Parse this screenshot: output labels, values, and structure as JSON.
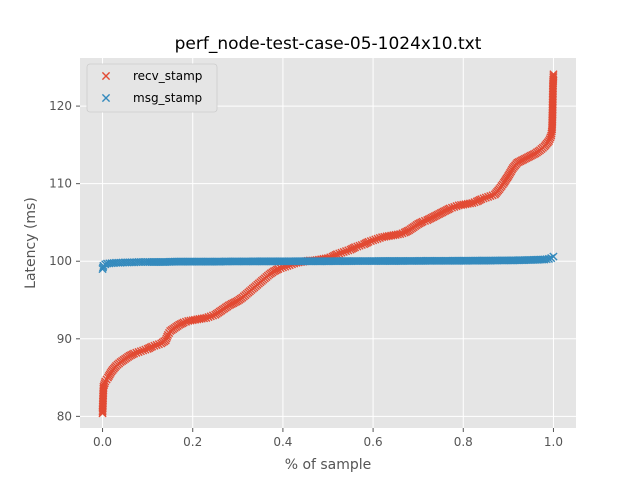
{
  "chart_data": {
    "type": "scatter",
    "title": "perf_node-test-case-05-1024x10.txt",
    "xlabel": "% of sample",
    "ylabel": "Latency (ms)",
    "xlim": [
      -0.05,
      1.05
    ],
    "ylim": [
      78.5,
      126.2
    ],
    "xticks": [
      0.0,
      0.2,
      0.4,
      0.6,
      0.8,
      1.0
    ],
    "xtick_labels": [
      "0.0",
      "0.2",
      "0.4",
      "0.6",
      "0.8",
      "1.0"
    ],
    "yticks": [
      80,
      90,
      100,
      110,
      120
    ],
    "ytick_labels": [
      "80",
      "90",
      "100",
      "110",
      "120"
    ],
    "grid": true,
    "legend_position": "top-left",
    "marker": "x",
    "series": [
      {
        "name": "recv_stamp",
        "color": "#E24A33",
        "points": [
          [
            0.0,
            80.4
          ],
          [
            0.002,
            83.8
          ],
          [
            0.006,
            84.5
          ],
          [
            0.012,
            85.0
          ],
          [
            0.02,
            85.8
          ],
          [
            0.03,
            86.5
          ],
          [
            0.04,
            87.0
          ],
          [
            0.05,
            87.4
          ],
          [
            0.06,
            87.8
          ],
          [
            0.07,
            88.1
          ],
          [
            0.08,
            88.3
          ],
          [
            0.09,
            88.5
          ],
          [
            0.1,
            88.7
          ],
          [
            0.11,
            89.0
          ],
          [
            0.12,
            89.2
          ],
          [
            0.13,
            89.4
          ],
          [
            0.14,
            89.8
          ],
          [
            0.145,
            90.5
          ],
          [
            0.15,
            91.0
          ],
          [
            0.16,
            91.4
          ],
          [
            0.17,
            91.8
          ],
          [
            0.18,
            92.1
          ],
          [
            0.19,
            92.3
          ],
          [
            0.2,
            92.4
          ],
          [
            0.21,
            92.5
          ],
          [
            0.22,
            92.6
          ],
          [
            0.23,
            92.7
          ],
          [
            0.24,
            92.9
          ],
          [
            0.25,
            93.1
          ],
          [
            0.26,
            93.5
          ],
          [
            0.27,
            93.9
          ],
          [
            0.28,
            94.3
          ],
          [
            0.29,
            94.6
          ],
          [
            0.3,
            94.9
          ],
          [
            0.31,
            95.3
          ],
          [
            0.32,
            95.8
          ],
          [
            0.33,
            96.3
          ],
          [
            0.34,
            96.8
          ],
          [
            0.35,
            97.3
          ],
          [
            0.36,
            97.8
          ],
          [
            0.37,
            98.3
          ],
          [
            0.38,
            98.7
          ],
          [
            0.39,
            99.0
          ],
          [
            0.4,
            99.2
          ],
          [
            0.41,
            99.4
          ],
          [
            0.42,
            99.6
          ],
          [
            0.43,
            99.8
          ],
          [
            0.44,
            99.9
          ],
          [
            0.45,
            100.0
          ],
          [
            0.46,
            100.1
          ],
          [
            0.47,
            100.1
          ],
          [
            0.48,
            100.2
          ],
          [
            0.49,
            100.3
          ],
          [
            0.5,
            100.4
          ],
          [
            0.51,
            100.6
          ],
          [
            0.52,
            100.9
          ],
          [
            0.53,
            101.1
          ],
          [
            0.54,
            101.3
          ],
          [
            0.55,
            101.5
          ],
          [
            0.56,
            101.8
          ],
          [
            0.57,
            102.0
          ],
          [
            0.58,
            102.2
          ],
          [
            0.59,
            102.5
          ],
          [
            0.6,
            102.7
          ],
          [
            0.61,
            102.9
          ],
          [
            0.62,
            103.1
          ],
          [
            0.63,
            103.2
          ],
          [
            0.64,
            103.3
          ],
          [
            0.65,
            103.4
          ],
          [
            0.66,
            103.5
          ],
          [
            0.67,
            103.7
          ],
          [
            0.68,
            104.0
          ],
          [
            0.69,
            104.4
          ],
          [
            0.7,
            104.8
          ],
          [
            0.71,
            105.1
          ],
          [
            0.72,
            105.3
          ],
          [
            0.73,
            105.6
          ],
          [
            0.74,
            105.9
          ],
          [
            0.75,
            106.2
          ],
          [
            0.76,
            106.5
          ],
          [
            0.77,
            106.8
          ],
          [
            0.78,
            107.0
          ],
          [
            0.79,
            107.2
          ],
          [
            0.8,
            107.3
          ],
          [
            0.81,
            107.4
          ],
          [
            0.82,
            107.5
          ],
          [
            0.83,
            107.7
          ],
          [
            0.84,
            108.0
          ],
          [
            0.85,
            108.2
          ],
          [
            0.86,
            108.4
          ],
          [
            0.87,
            108.6
          ],
          [
            0.88,
            109.3
          ],
          [
            0.89,
            110.1
          ],
          [
            0.9,
            111.0
          ],
          [
            0.91,
            112.0
          ],
          [
            0.92,
            112.7
          ],
          [
            0.93,
            113.0
          ],
          [
            0.94,
            113.3
          ],
          [
            0.95,
            113.6
          ],
          [
            0.96,
            113.9
          ],
          [
            0.97,
            114.3
          ],
          [
            0.98,
            114.8
          ],
          [
            0.99,
            115.5
          ],
          [
            0.995,
            116.2
          ],
          [
            0.997,
            117.0
          ],
          [
            0.998,
            119.4
          ],
          [
            0.999,
            122.7
          ],
          [
            1.0,
            124.1
          ]
        ]
      },
      {
        "name": "msg_stamp",
        "color": "#348ABD",
        "points": [
          [
            0.0,
            99.0
          ],
          [
            0.002,
            99.4
          ],
          [
            0.006,
            99.6
          ],
          [
            0.01,
            99.7
          ],
          [
            0.02,
            99.75
          ],
          [
            0.03,
            99.8
          ],
          [
            0.04,
            99.8
          ],
          [
            0.05,
            99.85
          ],
          [
            0.06,
            99.85
          ],
          [
            0.07,
            99.85
          ],
          [
            0.08,
            99.9
          ],
          [
            0.09,
            99.9
          ],
          [
            0.1,
            99.9
          ],
          [
            0.12,
            99.9
          ],
          [
            0.14,
            99.9
          ],
          [
            0.16,
            99.95
          ],
          [
            0.18,
            99.95
          ],
          [
            0.2,
            99.95
          ],
          [
            0.22,
            99.95
          ],
          [
            0.24,
            99.95
          ],
          [
            0.26,
            99.95
          ],
          [
            0.28,
            99.97
          ],
          [
            0.3,
            99.97
          ],
          [
            0.32,
            99.97
          ],
          [
            0.34,
            99.98
          ],
          [
            0.36,
            99.98
          ],
          [
            0.38,
            99.98
          ],
          [
            0.4,
            99.99
          ],
          [
            0.42,
            99.99
          ],
          [
            0.44,
            100.0
          ],
          [
            0.46,
            100.0
          ],
          [
            0.48,
            100.0
          ],
          [
            0.5,
            100.0
          ],
          [
            0.52,
            100.01
          ],
          [
            0.54,
            100.01
          ],
          [
            0.56,
            100.02
          ],
          [
            0.58,
            100.02
          ],
          [
            0.6,
            100.02
          ],
          [
            0.62,
            100.03
          ],
          [
            0.64,
            100.03
          ],
          [
            0.66,
            100.03
          ],
          [
            0.68,
            100.04
          ],
          [
            0.7,
            100.04
          ],
          [
            0.72,
            100.05
          ],
          [
            0.74,
            100.05
          ],
          [
            0.76,
            100.05
          ],
          [
            0.78,
            100.06
          ],
          [
            0.8,
            100.06
          ],
          [
            0.82,
            100.07
          ],
          [
            0.84,
            100.08
          ],
          [
            0.86,
            100.08
          ],
          [
            0.88,
            100.1
          ],
          [
            0.9,
            100.1
          ],
          [
            0.92,
            100.12
          ],
          [
            0.94,
            100.15
          ],
          [
            0.96,
            100.18
          ],
          [
            0.98,
            100.22
          ],
          [
            0.99,
            100.3
          ],
          [
            0.995,
            100.4
          ],
          [
            1.0,
            100.6
          ]
        ]
      }
    ]
  }
}
